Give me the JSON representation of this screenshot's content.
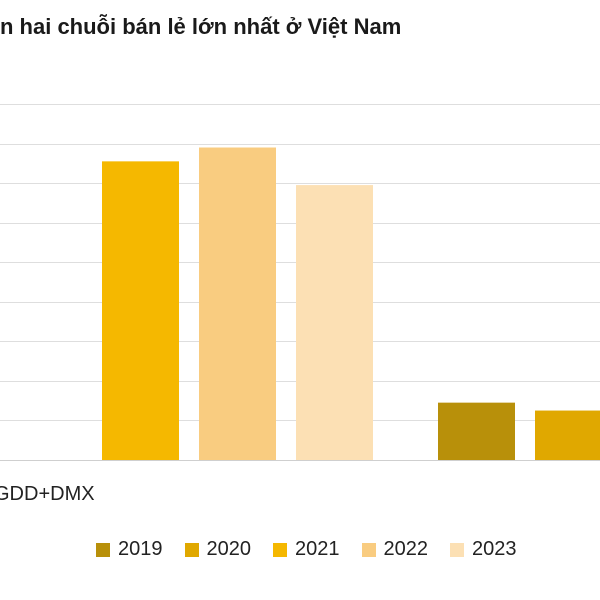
{
  "chart_data": {
    "type": "bar",
    "title": "n hai chuỗi bán lẻ lớn nhất ở Việt Nam",
    "categories": [
      "GDD+DMX",
      ""
    ],
    "series": [
      {
        "name": "2019",
        "color": "#b8900a",
        "values": [
          null,
          1.45
        ]
      },
      {
        "name": "2020",
        "color": "#e0a800",
        "values": [
          null,
          1.25
        ]
      },
      {
        "name": "2021",
        "color": "#f5b800",
        "values": [
          7.55,
          null
        ]
      },
      {
        "name": "2022",
        "color": "#f9cc80",
        "values": [
          7.9,
          null
        ]
      },
      {
        "name": "2023",
        "color": "#fce0b4",
        "values": [
          6.95,
          null
        ]
      }
    ],
    "ylim": [
      0,
      9
    ],
    "grid": true,
    "legend_position": "bottom"
  }
}
